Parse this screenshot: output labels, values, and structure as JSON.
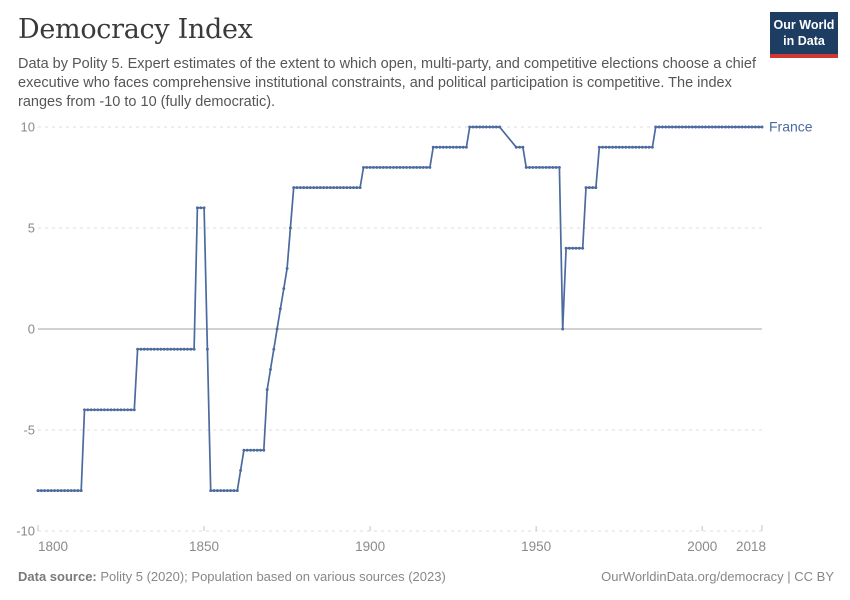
{
  "header": {
    "title": "Democracy Index",
    "subtitle": "Data by Polity 5. Expert estimates of the extent to which open, multi-party, and competitive elections choose a chief executive who faces comprehensive institutional constraints, and political participation is competitive. The index ranges from -10 to 10 (fully democratic).",
    "logo": {
      "line1": "Our World",
      "line2": "in Data"
    }
  },
  "chart_data": {
    "type": "line",
    "title": "Democracy Index",
    "entity": "France",
    "xlabel": "",
    "ylabel": "",
    "xlim": [
      1800,
      2018
    ],
    "ylim": [
      -10,
      10
    ],
    "yticks": [
      10,
      5,
      0,
      -5,
      -10
    ],
    "xticks": [
      1800,
      1850,
      1900,
      1950,
      2000,
      2018
    ],
    "grid": "horizontal dashed gridlines, solid line at 0",
    "legend_position": "label at right end of line",
    "gap_years_no_data": [
      1940,
      1941,
      1942,
      1943
    ],
    "segments_year_from_to_value": [
      [
        1800,
        1813,
        -8
      ],
      [
        1814,
        1829,
        -4
      ],
      [
        1830,
        1847,
        -1
      ],
      [
        1848,
        1850,
        6
      ],
      [
        1851,
        1851,
        -1
      ],
      [
        1852,
        1860,
        -8
      ],
      [
        1861,
        1861,
        -7
      ],
      [
        1862,
        1868,
        -6
      ],
      [
        1869,
        1869,
        -3
      ],
      [
        1870,
        1870,
        -2
      ],
      [
        1871,
        1871,
        -1
      ],
      [
        1872,
        1872,
        0
      ],
      [
        1873,
        1873,
        1
      ],
      [
        1874,
        1874,
        2
      ],
      [
        1875,
        1875,
        3
      ],
      [
        1876,
        1876,
        5
      ],
      [
        1877,
        1897,
        7
      ],
      [
        1898,
        1918,
        8
      ],
      [
        1919,
        1929,
        9
      ],
      [
        1930,
        1939,
        10
      ],
      [
        1944,
        1946,
        9
      ],
      [
        1947,
        1957,
        8
      ],
      [
        1958,
        1958,
        0
      ],
      [
        1959,
        1964,
        4
      ],
      [
        1965,
        1968,
        7
      ],
      [
        1969,
        1985,
        9
      ],
      [
        1986,
        2018,
        10
      ]
    ]
  },
  "colors": {
    "line": "#4b6a9e",
    "gridline": "#dcdcdc",
    "zero_line": "#a6a6a6",
    "axis_tick": "#c4c4c4",
    "axis_label": "#8a8a8a",
    "title": "#3a3a3a",
    "subtitle": "#565656",
    "logo_bg": "#1d3d63",
    "logo_red": "#cf3832",
    "footer": "#878787"
  },
  "footer": {
    "source_label": "Data source:",
    "source_rest": " Polity 5 (2020); Population based on various sources (2023)",
    "right_text": "OurWorldinData.org/democracy | CC BY"
  }
}
